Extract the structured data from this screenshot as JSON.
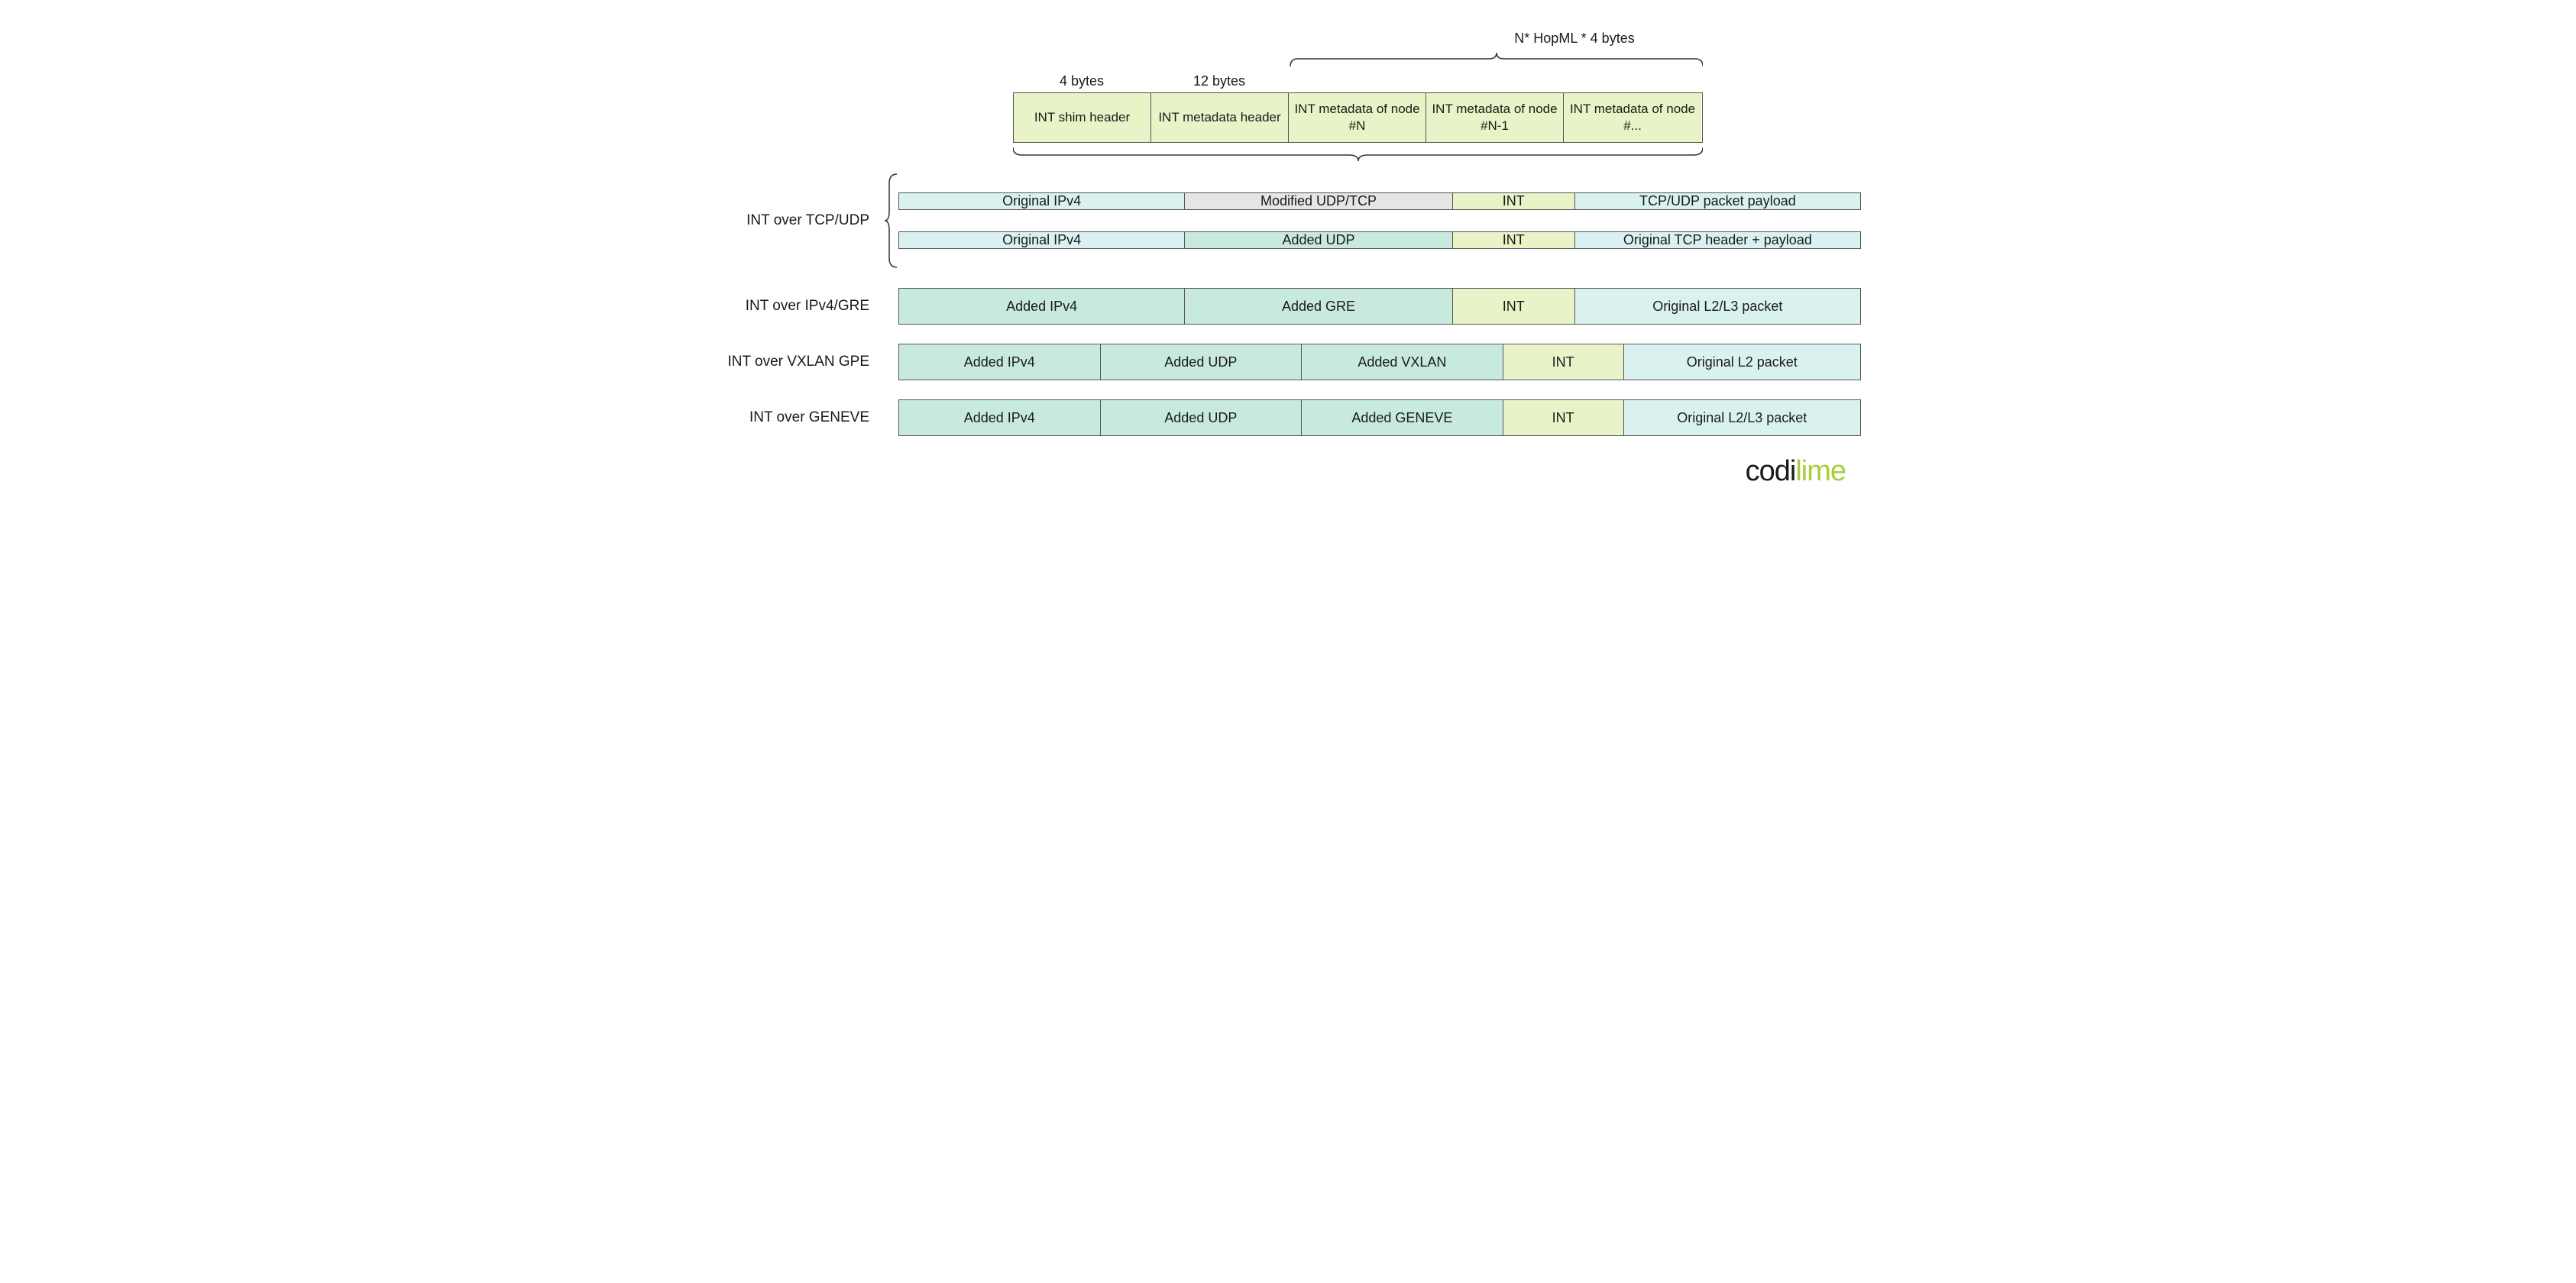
{
  "colors": {
    "green_light": "#e8f3c7",
    "cyan_light": "#d9f2f0",
    "mint": "#c7e9de",
    "grey": "#e5e5e5",
    "border": "#555555",
    "text": "#1a1a1a",
    "logo_green": "#a6ce39"
  },
  "top": {
    "label_shim_bytes": "4 bytes",
    "label_meta_bytes": "12 bytes",
    "label_hop_formula": "N* HopML * 4 bytes",
    "cells": [
      {
        "text": "INT shim header",
        "width": 180
      },
      {
        "text": "INT metadata header",
        "width": 180
      },
      {
        "text": "INT metadata of node #N",
        "width": 180
      },
      {
        "text": "INT metadata of node #N-1",
        "width": 180
      },
      {
        "text": "INT metadata of node #...",
        "width": 180
      }
    ]
  },
  "groups": {
    "tcp_udp_label": "INT over TCP/UDP",
    "ipv4_gre_label": "INT over IPv4/GRE",
    "vxlan_label": "INT over VXLAN GPE",
    "geneve_label": "INT over GENEVE"
  },
  "rows": {
    "tcp_udp_1": [
      {
        "text": "Original IPv4",
        "color": "cyan_light",
        "flex": 30
      },
      {
        "text": "Modified UDP/TCP",
        "color": "grey",
        "flex": 28
      },
      {
        "text": "INT",
        "color": "green_light",
        "flex": 12
      },
      {
        "text": "TCP/UDP packet payload",
        "color": "cyan_light",
        "flex": 30
      }
    ],
    "tcp_udp_2": [
      {
        "text": "Original IPv4",
        "color": "cyan_light",
        "flex": 30
      },
      {
        "text": "Added UDP",
        "color": "mint",
        "flex": 28
      },
      {
        "text": "INT",
        "color": "green_light",
        "flex": 12
      },
      {
        "text": "Original TCP header + payload",
        "color": "cyan_light",
        "flex": 30
      }
    ],
    "ipv4_gre": [
      {
        "text": "Added IPv4",
        "color": "mint",
        "flex": 30
      },
      {
        "text": "Added GRE",
        "color": "mint",
        "flex": 28
      },
      {
        "text": "INT",
        "color": "green_light",
        "flex": 12
      },
      {
        "text": "Original L2/L3 packet",
        "color": "cyan_light",
        "flex": 30
      }
    ],
    "vxlan": [
      {
        "text": "Added IPv4",
        "color": "mint",
        "flex": 21
      },
      {
        "text": "Added UDP",
        "color": "mint",
        "flex": 21
      },
      {
        "text": "Added VXLAN",
        "color": "mint",
        "flex": 21
      },
      {
        "text": "INT",
        "color": "green_light",
        "flex": 12
      },
      {
        "text": "Original L2 packet",
        "color": "cyan_light",
        "flex": 25
      }
    ],
    "geneve": [
      {
        "text": "Added IPv4",
        "color": "mint",
        "flex": 21
      },
      {
        "text": "Added UDP",
        "color": "mint",
        "flex": 21
      },
      {
        "text": "Added GENEVE",
        "color": "mint",
        "flex": 21
      },
      {
        "text": "INT",
        "color": "green_light",
        "flex": 12
      },
      {
        "text": "Original L2/L3 packet",
        "color": "cyan_light",
        "flex": 25
      }
    ]
  },
  "logo": {
    "part1": "codi",
    "part2": "lime"
  }
}
